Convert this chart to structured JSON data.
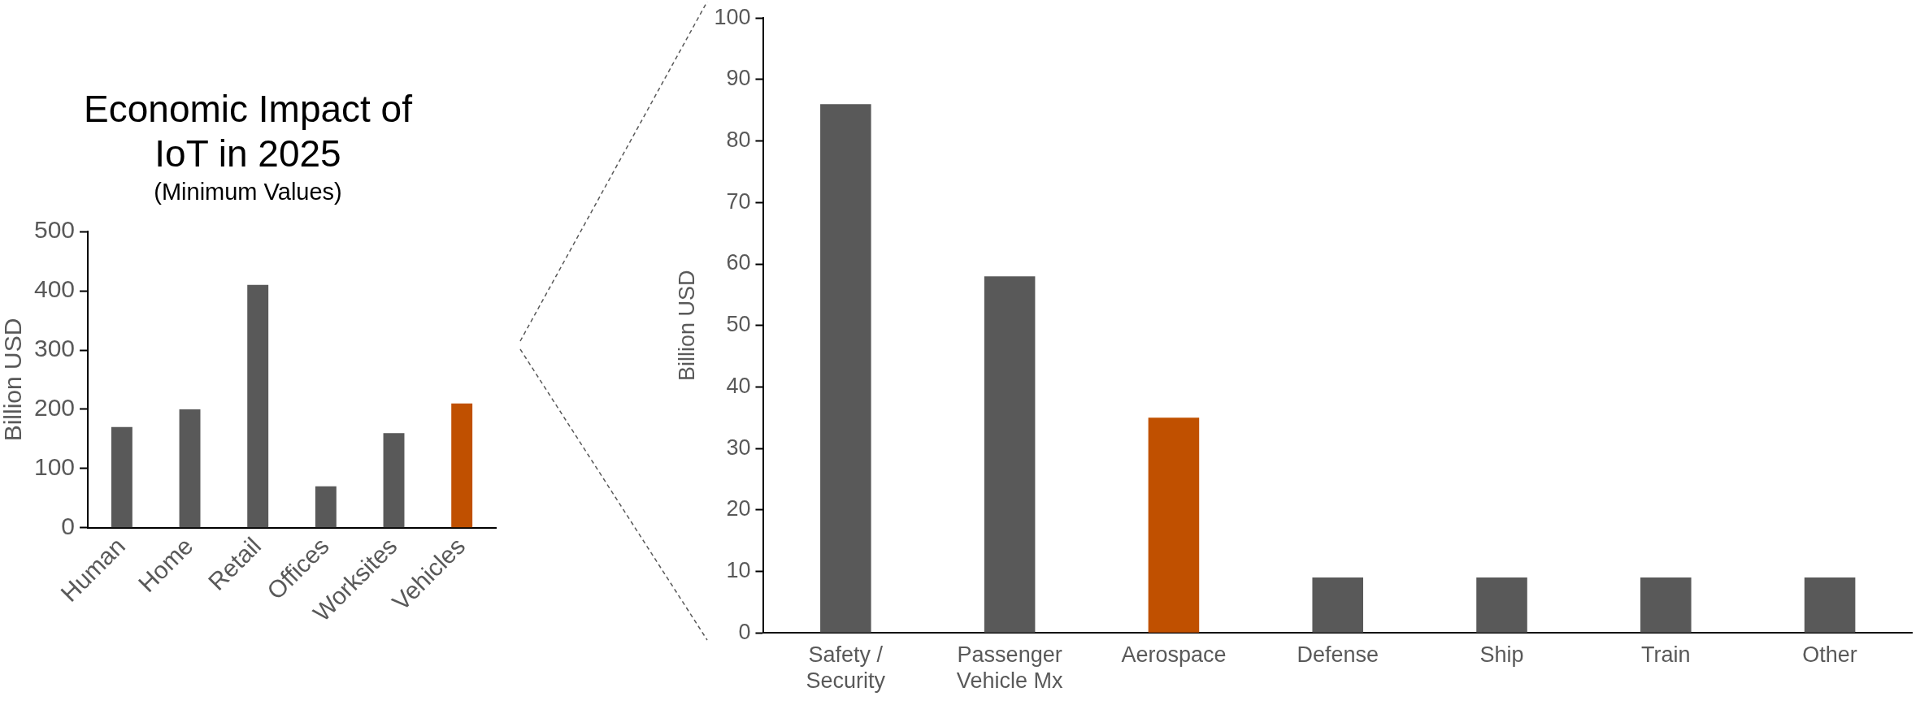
{
  "chart_data": [
    {
      "type": "bar",
      "title": "Economic Impact of IoT in 2025",
      "subtitle": "(Minimum Values)",
      "ylabel": "Billion USD",
      "categories": [
        "Human",
        "Home",
        "Retail",
        "Offices",
        "Worksites",
        "Vehicles"
      ],
      "values": [
        170,
        200,
        410,
        70,
        160,
        210
      ],
      "colors": [
        "#595959",
        "#595959",
        "#595959",
        "#595959",
        "#595959",
        "#c05000"
      ],
      "ylim": [
        0,
        500
      ],
      "yticks": [
        0,
        100,
        200,
        300,
        400,
        500
      ],
      "grid": false,
      "legend": false
    },
    {
      "type": "bar",
      "ylabel": "Billion USD",
      "categories": [
        "Safety / Security",
        "Passenger Vehicle Mx",
        "Aerospace",
        "Defense",
        "Ship",
        "Train",
        "Other"
      ],
      "values": [
        86,
        58,
        35,
        9,
        9,
        9,
        9
      ],
      "colors": [
        "#595959",
        "#595959",
        "#c05000",
        "#595959",
        "#595959",
        "#595959",
        "#595959"
      ],
      "ylim": [
        0,
        100
      ],
      "yticks": [
        0,
        10,
        20,
        30,
        40,
        50,
        60,
        70,
        80,
        90,
        100
      ],
      "grid": false,
      "legend": false
    }
  ]
}
